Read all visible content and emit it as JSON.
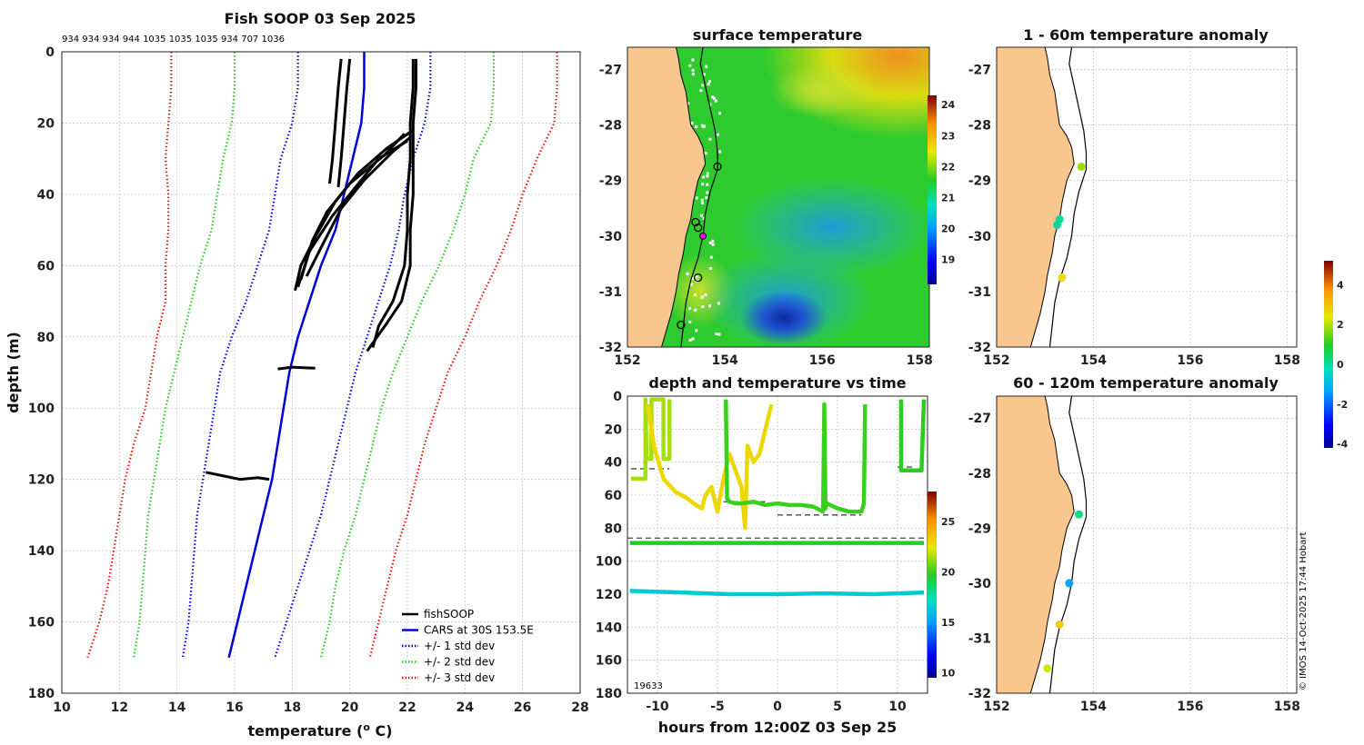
{
  "figure": {
    "main_title": "Fish SOOP 03 Sep 2025",
    "station_ids_label": "934 934 934 944 1035 1035 1035 934 707 1036",
    "copyright": "© IMOS 14-Oct-2025 17:44 Hobart"
  },
  "chart_data": [
    {
      "id": "profile",
      "type": "line",
      "title": "Fish SOOP 03 Sep 2025",
      "xlabel": "temperature (",
      "xlabel_sup": "o",
      "xlabel_tail": " C)",
      "ylabel": "depth (m)",
      "xlim": [
        10,
        28
      ],
      "ylim": [
        180,
        0
      ],
      "xticks": [
        10,
        12,
        14,
        16,
        18,
        20,
        22,
        24,
        26,
        28
      ],
      "yticks": [
        0,
        20,
        40,
        60,
        80,
        100,
        120,
        140,
        160,
        180
      ],
      "legend": {
        "position": "bottom-right",
        "entries": [
          {
            "label": "fishSOOP",
            "color": "#000000",
            "style": "solid"
          },
          {
            "label": "CARS at 30S 153.5E",
            "color": "#0000dd",
            "style": "solid"
          },
          {
            "label": "+/- 1 std dev",
            "color": "#0000dd",
            "style": "dotted"
          },
          {
            "label": "+/- 2 std dev",
            "color": "#22cc22",
            "style": "dotted"
          },
          {
            "label": "+/- 3 std dev",
            "color": "#ee1111",
            "style": "dotted"
          }
        ]
      },
      "depths": [
        0,
        10,
        20,
        30,
        40,
        50,
        60,
        70,
        80,
        90,
        100,
        110,
        120,
        130,
        140,
        150,
        160,
        170
      ],
      "series": [
        {
          "name": "CARS at 30S 153.5E",
          "color": "#0000dd",
          "style": "solid",
          "values": [
            20.5,
            20.5,
            20.4,
            20.1,
            19.8,
            19.5,
            19.0,
            18.6,
            18.2,
            17.9,
            17.7,
            17.5,
            17.3,
            17.0,
            16.7,
            16.4,
            16.1,
            15.8
          ]
        },
        {
          "name": "+1 std dev",
          "color": "#0000dd",
          "style": "dotted",
          "values": [
            22.8,
            22.8,
            22.6,
            22.2,
            21.9,
            21.7,
            21.4,
            21.0,
            20.6,
            20.2,
            19.9,
            19.6,
            19.3,
            19.0,
            18.6,
            18.2,
            17.8,
            17.4
          ]
        },
        {
          "name": "-1 std dev",
          "color": "#0000dd",
          "style": "dotted",
          "values": [
            18.2,
            18.2,
            18.0,
            17.6,
            17.4,
            17.2,
            16.8,
            16.4,
            15.9,
            15.5,
            15.3,
            15.1,
            14.9,
            14.7,
            14.6,
            14.5,
            14.4,
            14.2
          ]
        },
        {
          "name": "+2 std dev",
          "color": "#22cc22",
          "style": "dotted",
          "values": [
            25.0,
            25.0,
            24.9,
            24.3,
            24.0,
            23.6,
            23.1,
            22.5,
            22.0,
            21.5,
            21.1,
            20.8,
            20.5,
            20.2,
            19.8,
            19.5,
            19.3,
            19.0
          ]
        },
        {
          "name": "-2 std dev",
          "color": "#22cc22",
          "style": "dotted",
          "values": [
            16.0,
            16.0,
            15.9,
            15.6,
            15.4,
            15.2,
            14.8,
            14.5,
            14.2,
            13.9,
            13.6,
            13.4,
            13.2,
            13.0,
            12.9,
            12.8,
            12.7,
            12.5
          ]
        },
        {
          "name": "+3 std dev",
          "color": "#ee1111",
          "style": "dotted",
          "values": [
            27.2,
            27.2,
            27.1,
            26.5,
            26.0,
            25.6,
            25.1,
            24.5,
            24.0,
            23.4,
            23.0,
            22.6,
            22.3,
            22.0,
            21.6,
            21.3,
            21.0,
            20.7
          ]
        },
        {
          "name": "-3 std dev",
          "color": "#ee1111",
          "style": "dotted",
          "values": [
            13.8,
            13.8,
            13.7,
            13.6,
            13.7,
            13.7,
            13.6,
            13.6,
            13.3,
            13.1,
            12.9,
            12.5,
            12.2,
            12.0,
            11.8,
            11.6,
            11.3,
            10.9
          ]
        }
      ],
      "fishsoop_profiles": [
        {
          "temps": [
            19.7,
            19.6,
            19.5,
            19.4,
            19.3
          ],
          "depths": [
            2,
            10,
            20,
            30,
            37
          ]
        },
        {
          "temps": [
            20.0,
            19.9,
            19.8,
            19.7,
            19.6
          ],
          "depths": [
            2,
            10,
            20,
            30,
            38
          ]
        },
        {
          "temps": [
            22.3,
            22.3,
            22.2,
            22.2,
            22.2,
            22.1,
            22.1,
            21.8,
            21.3,
            20.6
          ],
          "depths": [
            2,
            10,
            20,
            30,
            40,
            50,
            60,
            70,
            76,
            84
          ]
        },
        {
          "temps": [
            22.2,
            22.2,
            22.1,
            22.1,
            22.0,
            22.0,
            21.9,
            21.5,
            21.0,
            20.8
          ],
          "depths": [
            2,
            10,
            20,
            30,
            40,
            50,
            60,
            70,
            77,
            83
          ]
        },
        {
          "temps": [
            22.1,
            21.5,
            20.5,
            19.7,
            19.0,
            18.5
          ],
          "depths": [
            24,
            28,
            36,
            44,
            55,
            63
          ]
        },
        {
          "temps": [
            22.2,
            21.3,
            20.3,
            19.5,
            18.8,
            18.3,
            18.1
          ],
          "depths": [
            22,
            27,
            34,
            42,
            52,
            60,
            67
          ]
        },
        {
          "temps": [
            22.0,
            21.0,
            20.2,
            19.4,
            18.6,
            18.2
          ],
          "depths": [
            25,
            30,
            38,
            46,
            56,
            66
          ]
        },
        {
          "temps": [
            21.9,
            21.2,
            20.0,
            19.2,
            18.7,
            18.3
          ],
          "depths": [
            23,
            29,
            37,
            45,
            53,
            64
          ]
        },
        {
          "temps": [
            17.5,
            18.0,
            18.5,
            18.8
          ],
          "depths": [
            89,
            88.5,
            88.7,
            88.8
          ]
        },
        {
          "temps": [
            15.0,
            15.6,
            16.2,
            16.8,
            17.2
          ],
          "depths": [
            118,
            119,
            120,
            119.5,
            120
          ]
        }
      ]
    },
    {
      "id": "sst_map",
      "type": "heatmap",
      "title": "surface temperature",
      "xlim": [
        152,
        158.2
      ],
      "ylim": [
        -32,
        -26.6
      ],
      "xticks": [
        152,
        154,
        156,
        158
      ],
      "yticks": [
        -27,
        -28,
        -29,
        -30,
        -31,
        -32
      ],
      "colorbar": {
        "min": 18.2,
        "max": 24.3,
        "ticks": [
          19,
          20,
          21,
          22,
          23,
          24
        ]
      },
      "stations": [
        {
          "lon": 153.85,
          "lat": -28.75,
          "style": "open"
        },
        {
          "lon": 153.4,
          "lat": -29.75,
          "style": "open"
        },
        {
          "lon": 153.45,
          "lat": -29.85,
          "style": "open"
        },
        {
          "lon": 153.55,
          "lat": -30.0,
          "style": "magenta"
        },
        {
          "lon": 153.45,
          "lat": -30.75,
          "style": "open"
        },
        {
          "lon": 153.1,
          "lat": -31.6,
          "style": "open"
        }
      ]
    },
    {
      "id": "anomaly_1_60",
      "type": "scatter",
      "title": "1 - 60m temperature anomaly",
      "xlim": [
        152,
        158.2
      ],
      "ylim": [
        -32,
        -26.6
      ],
      "xticks": [
        152,
        154,
        156,
        158
      ],
      "yticks": [
        -27,
        -28,
        -29,
        -30,
        -31,
        -32
      ],
      "points": [
        {
          "lon": 153.75,
          "lat": -28.75,
          "anomaly": 1.8
        },
        {
          "lon": 153.3,
          "lat": -29.7,
          "anomaly": 0.0
        },
        {
          "lon": 153.25,
          "lat": -29.8,
          "anomaly": 0.1
        },
        {
          "lon": 153.35,
          "lat": -30.75,
          "anomaly": 2.6
        }
      ]
    },
    {
      "id": "anomaly_60_120",
      "type": "scatter",
      "title": "60 - 120m temperature anomaly",
      "xlim": [
        152,
        158.2
      ],
      "ylim": [
        -32,
        -26.6
      ],
      "xticks": [
        152,
        154,
        156,
        158
      ],
      "yticks": [
        -27,
        -28,
        -29,
        -30,
        -31,
        -32
      ],
      "points": [
        {
          "lon": 153.7,
          "lat": -28.75,
          "anomaly": 0.2
        },
        {
          "lon": 153.5,
          "lat": -30.0,
          "anomaly": -1.3
        },
        {
          "lon": 153.3,
          "lat": -30.75,
          "anomaly": 2.8
        },
        {
          "lon": 153.05,
          "lat": -31.55,
          "anomaly": 2.2
        }
      ],
      "colorbar": {
        "min": -4.2,
        "max": 5.2,
        "ticks": [
          -4,
          -2,
          0,
          2,
          4
        ]
      }
    },
    {
      "id": "depth_time",
      "type": "scatter",
      "title": "depth and temperature vs time",
      "xlabel": "hours from 12:00Z 03 Sep 25",
      "xlim": [
        -12.5,
        12.5
      ],
      "ylim": [
        180,
        0
      ],
      "xticks": [
        -10,
        -5,
        0,
        5,
        10
      ],
      "yticks": [
        0,
        20,
        40,
        60,
        80,
        100,
        120,
        140,
        160,
        180
      ],
      "colorbar": {
        "min": 9.5,
        "max": 28,
        "ticks": [
          10,
          15,
          20,
          25
        ]
      },
      "corner_label": "19633",
      "traces": [
        {
          "temp": 21.5,
          "t": [
            -12.2,
            -11.0,
            -11.0,
            -10.9,
            -10.8,
            -10.7,
            -10.6,
            -10.5,
            -10.5,
            -9.5,
            -9.5,
            -9.4,
            -9.3,
            -9.2,
            -9.1,
            -9.0,
            -9.0
          ],
          "d": [
            50,
            50,
            2,
            38,
            38,
            38,
            38,
            38,
            2,
            2,
            38,
            38,
            38,
            38,
            38,
            38,
            2
          ]
        },
        {
          "temp": 23.0,
          "t": [
            -10.8,
            -10.3,
            -9.5,
            -8.5,
            -7.5,
            -6.8,
            -6.3,
            -6.0,
            -5.5,
            -5.0,
            -4.5,
            -4.0,
            -3.5,
            -3.0,
            -2.7,
            -2.5,
            -2.0,
            -1.5,
            -1.0,
            -0.5
          ],
          "d": [
            5,
            30,
            50,
            58,
            62,
            66,
            68,
            60,
            55,
            70,
            50,
            35,
            45,
            55,
            80,
            30,
            40,
            35,
            20,
            5
          ]
        },
        {
          "temp": 20.0,
          "t": [
            -4.3,
            -4.2,
            -4.0,
            -3.5,
            -3.0,
            -2.0,
            -1.0,
            0.0,
            1.0,
            2.0,
            3.0,
            3.8,
            3.9,
            4.0,
            4.1,
            5.0,
            6.0,
            7.0,
            7.2,
            7.3
          ],
          "d": [
            2,
            62,
            64,
            65,
            65,
            64,
            66,
            65,
            66,
            66,
            67,
            70,
            5,
            68,
            65,
            68,
            70,
            70,
            65,
            5
          ]
        },
        {
          "temp": 19.8,
          "t": [
            10.3,
            10.3,
            10.5,
            11.0,
            11.5,
            12.0,
            12.2
          ],
          "d": [
            2,
            45,
            45,
            45,
            45,
            45,
            2
          ]
        },
        {
          "temp": 19.5,
          "t": [
            -12.3,
            -6.0,
            0.0,
            6.0,
            12.2
          ],
          "d": [
            89,
            89,
            89,
            89,
            89
          ]
        },
        {
          "temp": 16.5,
          "t": [
            -12.3,
            -8.0,
            -4.0,
            0.0,
            4.0,
            8.0,
            12.2
          ],
          "d": [
            118,
            119,
            120,
            120,
            119.5,
            120,
            119
          ]
        }
      ],
      "bottom_marks": [
        {
          "t0": -12.2,
          "t1": -9.0,
          "d": 44
        },
        {
          "t0": -4.5,
          "t1": -1.0,
          "d": 64
        },
        {
          "t0": 0.0,
          "t1": 7.0,
          "d": 72
        },
        {
          "t0": 10.0,
          "t1": 11.5,
          "d": 43
        },
        {
          "t0": -12.5,
          "t1": 12.5,
          "d": 86
        }
      ]
    }
  ]
}
